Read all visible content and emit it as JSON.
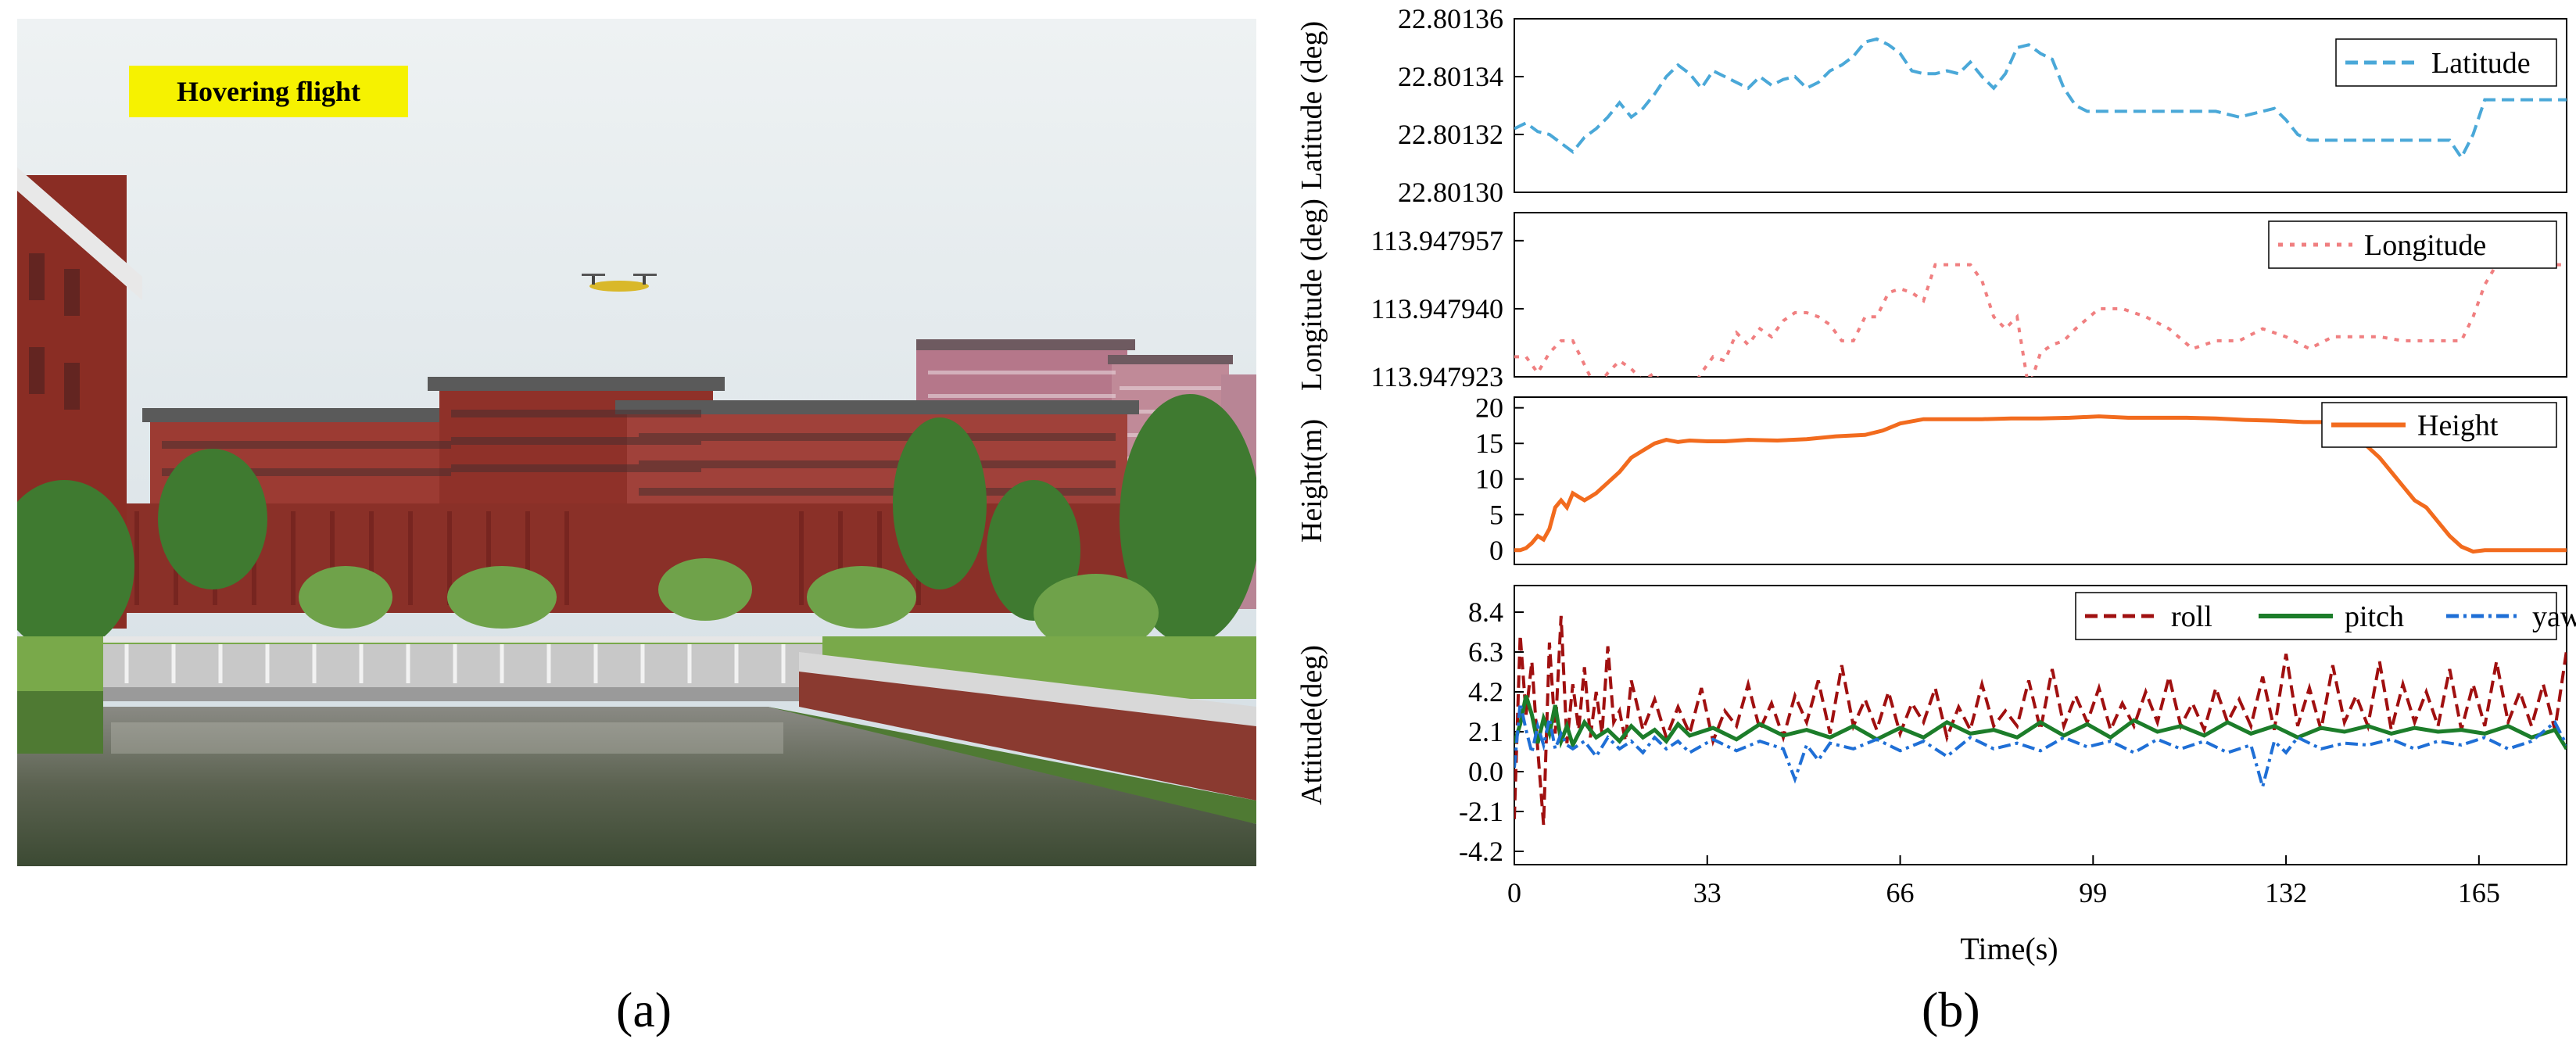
{
  "photo": {
    "label": "Hovering flight",
    "caption": "(a)"
  },
  "chart_caption": "(b)",
  "chart_data": [
    {
      "type": "line",
      "ylabel": "Latitude (deg)",
      "yticks": [
        "22.80130",
        "22.80132",
        "22.80134",
        "22.80136"
      ],
      "ylim": [
        22.8013,
        22.80136
      ],
      "xlim": [
        0,
        180
      ],
      "series": [
        {
          "name": "Latitude",
          "color": "#4aa8d8",
          "dash": "dashed",
          "x": [
            0,
            2,
            4,
            6,
            8,
            10,
            12,
            14,
            16,
            18,
            20,
            22,
            24,
            26,
            28,
            30,
            32,
            34,
            36,
            38,
            40,
            42,
            44,
            46,
            48,
            50,
            52,
            54,
            56,
            58,
            60,
            62,
            64,
            66,
            68,
            70,
            72,
            74,
            76,
            78,
            80,
            82,
            84,
            86,
            88,
            90,
            92,
            94,
            96,
            98,
            100,
            104,
            108,
            112,
            116,
            120,
            124,
            128,
            130,
            132,
            134,
            136,
            138,
            140,
            144,
            148,
            152,
            156,
            160,
            162,
            164,
            166,
            170,
            176,
            180
          ],
          "values": [
            22.801322,
            22.801324,
            22.801321,
            22.80132,
            22.801317,
            22.801314,
            22.801319,
            22.801322,
            22.801326,
            22.801331,
            22.801326,
            22.801329,
            22.801334,
            22.80134,
            22.801344,
            22.801341,
            22.801336,
            22.801342,
            22.80134,
            22.801338,
            22.801336,
            22.80134,
            22.801337,
            22.801339,
            22.80134,
            22.801336,
            22.801338,
            22.801342,
            22.801344,
            22.801347,
            22.801352,
            22.801353,
            22.801351,
            22.801348,
            22.801342,
            22.801341,
            22.801341,
            22.801342,
            22.801341,
            22.801345,
            22.80134,
            22.801336,
            22.801341,
            22.80135,
            22.801351,
            22.801348,
            22.801346,
            22.801336,
            22.80133,
            22.801328,
            22.801328,
            22.801328,
            22.801328,
            22.801328,
            22.801328,
            22.801328,
            22.801326,
            22.801328,
            22.801329,
            22.801325,
            22.80132,
            22.801318,
            22.801318,
            22.801318,
            22.801318,
            22.801318,
            22.801318,
            22.801318,
            22.801318,
            22.801312,
            22.80132,
            22.801332,
            22.801332,
            22.801332,
            22.801332
          ]
        }
      ]
    },
    {
      "type": "line",
      "ylabel": "Longitude (deg)",
      "yticks": [
        "113.947923",
        "113.947940",
        "113.947957"
      ],
      "ylim": [
        113.947923,
        113.947964
      ],
      "xlim": [
        0,
        180
      ],
      "series": [
        {
          "name": "Longitude",
          "color": "#f07f80",
          "dash": "dotted",
          "x": [
            0,
            2,
            4,
            6,
            8,
            10,
            12,
            14,
            16,
            18,
            20,
            22,
            24,
            26,
            28,
            30,
            32,
            34,
            36,
            38,
            40,
            42,
            44,
            46,
            48,
            50,
            52,
            54,
            56,
            58,
            60,
            62,
            64,
            66,
            68,
            70,
            72,
            74,
            76,
            78,
            80,
            82,
            84,
            86,
            88,
            90,
            92,
            94,
            96,
            100,
            104,
            108,
            112,
            116,
            120,
            124,
            128,
            132,
            136,
            140,
            144,
            148,
            152,
            156,
            160,
            162,
            164,
            166,
            168,
            170,
            176,
            180
          ],
          "values": [
            113.947928,
            113.947928,
            113.947924,
            113.947929,
            113.947932,
            113.947932,
            113.947926,
            113.94792,
            113.947924,
            113.947927,
            113.947925,
            113.947922,
            113.947924,
            113.947919,
            113.947918,
            113.947919,
            113.947924,
            113.947928,
            113.947927,
            113.947934,
            113.947931,
            113.947935,
            113.947933,
            113.947937,
            113.947939,
            113.947939,
            113.947938,
            113.947936,
            113.947932,
            113.947932,
            113.947938,
            113.947938,
            113.947944,
            113.947945,
            113.947944,
            113.947942,
            113.947951,
            113.947951,
            113.947951,
            113.947951,
            113.947947,
            113.947938,
            113.947935,
            113.947938,
            113.94792,
            113.947929,
            113.947931,
            113.947932,
            113.947935,
            113.94794,
            113.94794,
            113.947938,
            113.947935,
            113.94793,
            113.947932,
            113.947932,
            113.947935,
            113.947933,
            113.94793,
            113.947933,
            113.947933,
            113.947933,
            113.947932,
            113.947932,
            113.947932,
            113.947932,
            113.947938,
            113.947946,
            113.947951,
            113.947951,
            113.947951,
            113.947951
          ]
        }
      ]
    },
    {
      "type": "line",
      "ylabel": "Height(m)",
      "yticks": [
        "0",
        "5",
        "10",
        "15",
        "20"
      ],
      "ylim": [
        -2,
        21.5
      ],
      "xlim": [
        0,
        180
      ],
      "series": [
        {
          "name": "Height",
          "color": "#f26b1e",
          "dash": "solid",
          "x": [
            0,
            1,
            2,
            3,
            4,
            5,
            6,
            7,
            8,
            9,
            10,
            11,
            12,
            13,
            14,
            16,
            18,
            20,
            22,
            24,
            26,
            28,
            30,
            33,
            36,
            40,
            45,
            50,
            55,
            60,
            63,
            66,
            70,
            75,
            80,
            85,
            90,
            95,
            100,
            105,
            110,
            115,
            120,
            125,
            130,
            135,
            140,
            142,
            144,
            146,
            148,
            150,
            152,
            154,
            156,
            158,
            160,
            162,
            164,
            166,
            168,
            170,
            175,
            180
          ],
          "values": [
            0,
            0,
            0.3,
            1,
            2,
            1.5,
            3,
            6,
            7,
            6,
            8,
            7.5,
            7,
            7.5,
            8,
            9.5,
            11,
            13,
            14,
            15,
            15.5,
            15.2,
            15.4,
            15.3,
            15.3,
            15.5,
            15.4,
            15.6,
            16,
            16.2,
            16.8,
            17.8,
            18.4,
            18.4,
            18.4,
            18.5,
            18.5,
            18.6,
            18.8,
            18.6,
            18.6,
            18.6,
            18.5,
            18.3,
            18.2,
            18,
            18,
            17.5,
            16,
            14.5,
            13,
            11,
            9,
            7,
            6,
            4,
            2,
            0.5,
            -0.2,
            0,
            0,
            0,
            0,
            0
          ]
        }
      ]
    },
    {
      "type": "line",
      "ylabel": "Attitude(deg)",
      "xlabel": "Time(s)",
      "yticks": [
        "-4.2",
        "-2.1",
        "0.0",
        "2.1",
        "4.2",
        "6.3",
        "8.4"
      ],
      "xticks": [
        "0",
        "33",
        "66",
        "99",
        "132",
        "165"
      ],
      "xlim": [
        0,
        180
      ],
      "ylim": [
        -4.9,
        9.8
      ],
      "series": [
        {
          "name": "roll",
          "color": "#a01010",
          "dash": "dashed",
          "x": [
            0,
            1,
            2,
            3,
            4,
            5,
            6,
            7,
            8,
            9,
            10,
            11,
            12,
            13,
            14,
            15,
            16,
            17,
            18,
            19,
            20,
            22,
            24,
            26,
            28,
            30,
            32,
            34,
            36,
            38,
            40,
            42,
            44,
            46,
            48,
            50,
            52,
            54,
            56,
            58,
            60,
            62,
            64,
            66,
            68,
            70,
            72,
            74,
            76,
            78,
            80,
            82,
            84,
            86,
            88,
            90,
            92,
            94,
            96,
            98,
            100,
            102,
            104,
            106,
            108,
            110,
            112,
            114,
            116,
            118,
            120,
            122,
            124,
            126,
            128,
            130,
            132,
            134,
            136,
            138,
            140,
            142,
            144,
            146,
            148,
            150,
            152,
            154,
            156,
            158,
            160,
            162,
            164,
            166,
            168,
            170,
            172,
            174,
            176,
            178,
            180
          ],
          "values": [
            -2.5,
            7.2,
            3,
            5.8,
            1.2,
            -2.8,
            6.8,
            2,
            8.2,
            1.5,
            4.6,
            2.2,
            5.5,
            1.8,
            4.2,
            2,
            6.6,
            2.6,
            3.2,
            1.6,
            4.8,
            2.2,
            3.8,
            1.8,
            3.4,
            2,
            4.4,
            1.6,
            3.2,
            2.4,
            4.6,
            2.2,
            3.6,
            1.8,
            4,
            2.6,
            4.8,
            2,
            5.6,
            2.4,
            3.8,
            2.2,
            4.2,
            2,
            3.6,
            2.6,
            4.4,
            1.8,
            3.4,
            2.2,
            4.6,
            2.4,
            3.2,
            2.4,
            4.8,
            2.2,
            5.4,
            2.4,
            4,
            2.6,
            4.4,
            2.2,
            3.6,
            2.4,
            4.2,
            2.6,
            5,
            2.4,
            3.6,
            2.2,
            4.4,
            2.6,
            3.8,
            2.4,
            5,
            2.2,
            6.2,
            2.4,
            4.4,
            2.2,
            5.6,
            2.6,
            4,
            2.4,
            5.8,
            2.2,
            4.6,
            2.6,
            4.2,
            2.4,
            5.4,
            2.2,
            4.6,
            2.4,
            5.8,
            2.6,
            4.2,
            2.4,
            4.6,
            2.2,
            6.4
          ]
        },
        {
          "name": "pitch",
          "color": "#1c7d2a",
          "dash": "solid",
          "x": [
            0,
            1,
            2,
            3,
            4,
            5,
            6,
            7,
            8,
            9,
            10,
            12,
            14,
            16,
            18,
            20,
            22,
            24,
            26,
            28,
            30,
            34,
            38,
            42,
            46,
            50,
            54,
            58,
            62,
            66,
            70,
            74,
            78,
            82,
            86,
            90,
            94,
            98,
            102,
            106,
            110,
            114,
            118,
            122,
            126,
            130,
            134,
            138,
            142,
            146,
            150,
            154,
            158,
            162,
            166,
            170,
            174,
            178,
            180
          ],
          "values": [
            1.5,
            2.5,
            4,
            3,
            1.5,
            2.8,
            2,
            3.5,
            1.6,
            2.4,
            1.4,
            2.6,
            1.8,
            2.2,
            1.6,
            2.4,
            1.8,
            2.2,
            1.6,
            2.5,
            1.9,
            2.3,
            1.7,
            2.5,
            1.9,
            2.2,
            1.8,
            2.4,
            1.7,
            2.3,
            1.8,
            2.6,
            2,
            2.2,
            1.8,
            2.6,
            1.9,
            2.5,
            1.8,
            2.7,
            2.1,
            2.4,
            1.9,
            2.6,
            2,
            2.4,
            1.8,
            2.3,
            2.1,
            2.4,
            2,
            2.3,
            2.1,
            2.2,
            2,
            2.4,
            1.8,
            2.2,
            1.2
          ]
        },
        {
          "name": "yaw",
          "color": "#1f6fd6",
          "dash": "dashdot",
          "x": [
            0,
            1,
            2,
            3,
            4,
            5,
            6,
            7,
            8,
            9,
            10,
            12,
            14,
            16,
            18,
            20,
            22,
            24,
            26,
            28,
            30,
            34,
            38,
            42,
            46,
            48,
            50,
            52,
            54,
            58,
            62,
            66,
            70,
            74,
            78,
            82,
            86,
            90,
            94,
            98,
            102,
            106,
            110,
            114,
            118,
            122,
            126,
            128,
            130,
            132,
            134,
            138,
            142,
            146,
            150,
            154,
            158,
            162,
            166,
            170,
            174,
            178,
            180
          ],
          "values": [
            0.2,
            3.6,
            2.2,
            1,
            2.4,
            1.4,
            2.8,
            1.2,
            2,
            1.4,
            1.2,
            1.6,
            0.8,
            1.8,
            1.2,
            1.6,
            1,
            1.8,
            1.2,
            1.6,
            1,
            1.7,
            1.1,
            1.6,
            1.2,
            -0.4,
            1.4,
            0.6,
            1.5,
            1.2,
            1.7,
            1.1,
            1.6,
            0.8,
            1.8,
            1.2,
            1.5,
            1.1,
            1.8,
            1.3,
            1.6,
            1,
            1.7,
            1.2,
            1.6,
            1,
            1.4,
            -0.8,
            1.6,
            1,
            1.8,
            1.2,
            1.5,
            1.4,
            1.7,
            1.2,
            1.6,
            1.4,
            1.8,
            1.2,
            1.6,
            2.6,
            1.4
          ]
        }
      ]
    }
  ]
}
